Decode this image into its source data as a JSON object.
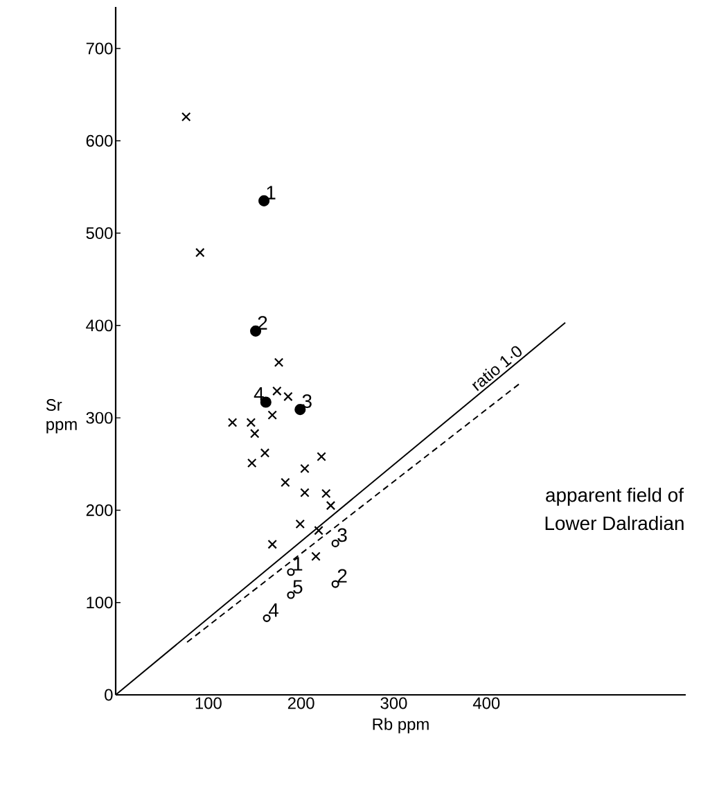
{
  "chart_data": {
    "type": "scatter",
    "xlabel": "Rb   ppm",
    "ylabel": "Sr ppm",
    "xlim": [
      0,
      615
    ],
    "ylim": [
      0,
      745
    ],
    "xticks": [
      100,
      200,
      300,
      400
    ],
    "yticks": [
      0,
      100,
      200,
      300,
      400,
      500,
      600,
      700
    ],
    "grid": false,
    "legend": false,
    "annotations": [
      "apparent field of",
      "Lower Dalradian",
      {
        "text": "1",
        "x": 160,
        "y": 535
      },
      {
        "text": "2",
        "x": 151,
        "y": 394
      },
      {
        "text": "3",
        "x": 199,
        "y": 309
      },
      {
        "text": "4",
        "x": 162,
        "y": 317
      },
      {
        "text": "1",
        "x": 189,
        "y": 133
      },
      {
        "text": "2",
        "x": 237,
        "y": 120
      },
      {
        "text": "3",
        "x": 237,
        "y": 164
      },
      {
        "text": "4",
        "x": 163,
        "y": 83
      },
      {
        "text": "5",
        "x": 189,
        "y": 108
      }
    ],
    "series": [
      {
        "marker": "cross",
        "color": "#000000",
        "x": [
          76,
          91,
          176,
          174,
          186,
          169,
          126,
          146,
          150,
          161,
          147,
          222,
          204,
          183,
          204,
          227,
          232,
          199,
          219,
          169,
          216
        ],
        "values": [
          626,
          479,
          360,
          329,
          323,
          303,
          295,
          295,
          283,
          262,
          251,
          258,
          245,
          230,
          219,
          218,
          205,
          185,
          178,
          163,
          150
        ]
      },
      {
        "marker": "circle",
        "color": "#000000",
        "x": [
          160,
          151,
          199,
          162
        ],
        "values": [
          535,
          394,
          309,
          317
        ]
      },
      {
        "marker": "circle",
        "color": "#000000",
        "x": [
          189,
          237,
          237,
          163,
          189
        ],
        "values": [
          133,
          120,
          164,
          83,
          108
        ]
      },
      {
        "type": "line",
        "name": "ratio 1·0",
        "line_style": "solid",
        "marker": "none",
        "color": "#000000",
        "x": [
          0,
          485
        ],
        "values": [
          0,
          403
        ]
      },
      {
        "type": "line",
        "line_style": "dashed",
        "marker": "none",
        "color": "#000000",
        "x": [
          77,
          437
        ],
        "values": [
          57,
          338
        ]
      }
    ]
  }
}
